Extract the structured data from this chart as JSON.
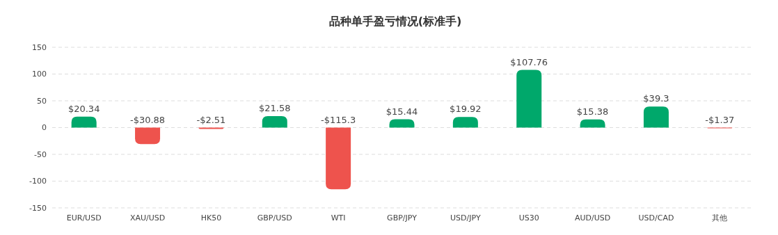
{
  "chart_data": {
    "type": "bar",
    "title": "品种单手盈亏情况(标准手)",
    "categories": [
      "EUR/USD",
      "XAU/USD",
      "HK50",
      "GBP/USD",
      "WTI",
      "GBP/JPY",
      "USD/JPY",
      "US30",
      "AUD/USD",
      "USD/CAD",
      "其他"
    ],
    "values": [
      20.34,
      -30.88,
      -2.51,
      21.58,
      -115.3,
      15.44,
      19.92,
      107.76,
      15.38,
      39.3,
      -1.37
    ],
    "colors": [
      "#00a86b",
      "#ee534d",
      "#ee534d",
      "#00a86b",
      "#ee534d",
      "#00a86b",
      "#00a86b",
      "#00a86b",
      "#00a86b",
      "#00a86b",
      "#ee534d"
    ],
    "value_labels": [
      "$20.34",
      "-$30.88",
      "-$2.51",
      "$21.58",
      "-$115.3",
      "$15.44",
      "$19.92",
      "$107.76",
      "$15.38",
      "$39.3",
      "-$1.37"
    ],
    "ylim": [
      -150,
      150
    ],
    "yticks": [
      -150,
      -100,
      -50,
      0,
      50,
      100,
      150
    ],
    "grid": "y"
  }
}
